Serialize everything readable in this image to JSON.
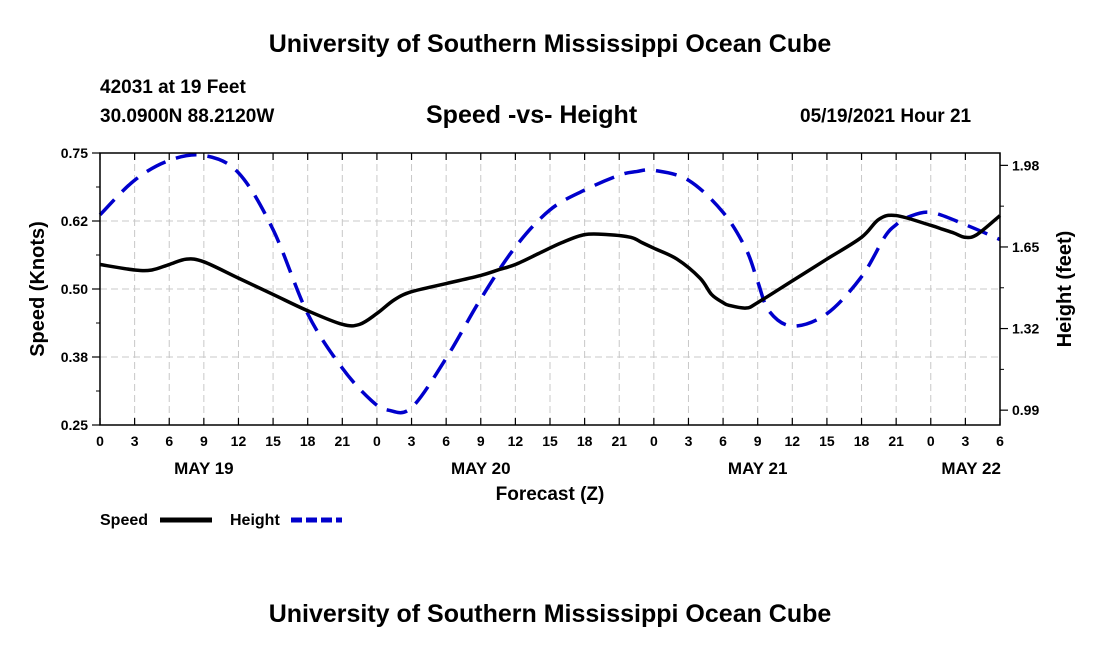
{
  "header": {
    "title": "University of Southern Mississippi Ocean Cube",
    "station": "42031 at 19 Feet",
    "coords": "30.0900N  88.2120W",
    "subtitle": "Speed -vs- Height",
    "datetime": "05/19/2021 Hour 21"
  },
  "footer": {
    "title": "University of Southern Mississippi Ocean Cube"
  },
  "chart_data": {
    "type": "line",
    "title": "Speed -vs- Height",
    "xlabel": "Forecast (Z)",
    "ylabel": "Speed (Knots)",
    "y2label": "Height (feet)",
    "x_range_hours": [
      0,
      78
    ],
    "x_tick_labels": [
      "0",
      "3",
      "6",
      "9",
      "12",
      "15",
      "18",
      "21",
      "0",
      "3",
      "6",
      "9",
      "12",
      "15",
      "18",
      "21",
      "0",
      "3",
      "6",
      "9",
      "12",
      "15",
      "18",
      "21",
      "0",
      "3",
      "6"
    ],
    "date_labels": [
      {
        "label": "MAY 19",
        "hour": 9
      },
      {
        "label": "MAY 20",
        "hour": 33
      },
      {
        "label": "MAY 21",
        "hour": 57
      },
      {
        "label": "MAY 22",
        "hour": 75.5
      }
    ],
    "ylim": [
      0.25,
      0.75
    ],
    "y_ticks": [
      "0.25",
      "0.38",
      "0.50",
      "0.62",
      "0.75"
    ],
    "y_tick_values": [
      0.25,
      0.375,
      0.5,
      0.625,
      0.75
    ],
    "y2lim": [
      0.93,
      2.03
    ],
    "y2_ticks": [
      "0.99",
      "1.32",
      "1.65",
      "1.98"
    ],
    "y2_tick_values": [
      0.99,
      1.32,
      1.65,
      1.98
    ],
    "legend": {
      "position": "bottom-left",
      "speed_label": "Speed",
      "height_label": "Height"
    },
    "grid": true,
    "series": [
      {
        "name": "Speed",
        "axis": "left",
        "color": "#000000",
        "style": "solid",
        "x": [
          0,
          3,
          4.5,
          6,
          7.5,
          9,
          12,
          15,
          18,
          21,
          22.5,
          24,
          25.5,
          27,
          30,
          33,
          34.5,
          36,
          38,
          40,
          42,
          44,
          46,
          47,
          48,
          50,
          52,
          53,
          54,
          54.5,
          56,
          57,
          60,
          63,
          66,
          67.5,
          69,
          72,
          73,
          74,
          75,
          76,
          78
        ],
        "y": [
          0.545,
          0.535,
          0.535,
          0.545,
          0.555,
          0.55,
          0.52,
          0.49,
          0.46,
          0.435,
          0.435,
          0.455,
          0.48,
          0.495,
          0.51,
          0.525,
          0.535,
          0.545,
          0.565,
          0.585,
          0.6,
          0.6,
          0.595,
          0.585,
          0.575,
          0.555,
          0.52,
          0.49,
          0.475,
          0.47,
          0.465,
          0.475,
          0.515,
          0.555,
          0.595,
          0.628,
          0.635,
          0.617,
          0.61,
          0.603,
          0.595,
          0.6,
          0.635
        ]
      },
      {
        "name": "Height",
        "axis": "right",
        "color": "#0000cc",
        "style": "dashed",
        "x": [
          0,
          3,
          6,
          9,
          12,
          15,
          18,
          21,
          23.5,
          25,
          27,
          30,
          33,
          36,
          39,
          42,
          45,
          46.5,
          48,
          51,
          54,
          56,
          57,
          58,
          60,
          63,
          66,
          68,
          69,
          70,
          72,
          75,
          78
        ],
        "y": [
          1.78,
          1.92,
          2.0,
          2.02,
          1.95,
          1.72,
          1.38,
          1.16,
          1.03,
          0.99,
          1.0,
          1.2,
          1.44,
          1.65,
          1.8,
          1.88,
          1.94,
          1.955,
          1.96,
          1.92,
          1.79,
          1.64,
          1.51,
          1.39,
          1.33,
          1.38,
          1.53,
          1.69,
          1.74,
          1.77,
          1.79,
          1.74,
          1.68
        ]
      }
    ]
  }
}
